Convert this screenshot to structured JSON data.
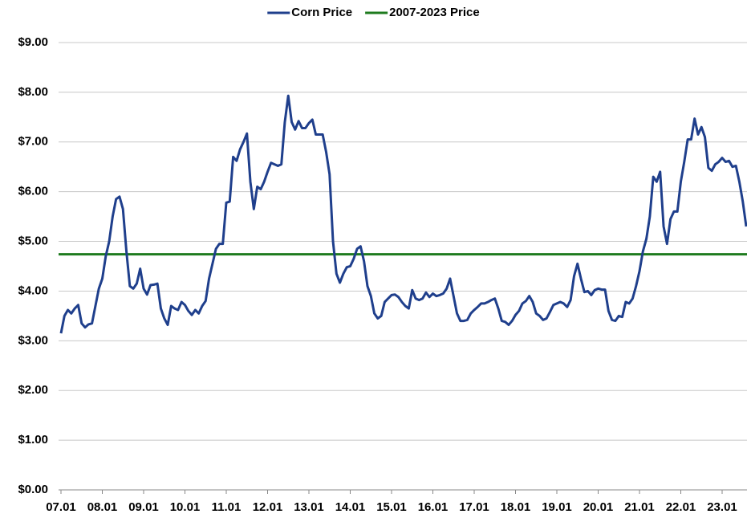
{
  "chart_data": {
    "type": "line",
    "categories": [
      "07.01",
      null,
      null,
      null,
      null,
      null,
      null,
      null,
      null,
      null,
      null,
      null,
      "08.01",
      null,
      null,
      null,
      null,
      null,
      null,
      null,
      null,
      null,
      null,
      null,
      "09.01",
      null,
      null,
      null,
      null,
      null,
      null,
      null,
      null,
      null,
      null,
      null,
      "10.01",
      null,
      null,
      null,
      null,
      null,
      null,
      null,
      null,
      null,
      null,
      null,
      "11.01",
      null,
      null,
      null,
      null,
      null,
      null,
      null,
      null,
      null,
      null,
      null,
      "12.01",
      null,
      null,
      null,
      null,
      null,
      null,
      null,
      null,
      null,
      null,
      null,
      "13.01",
      null,
      null,
      null,
      null,
      null,
      null,
      null,
      null,
      null,
      null,
      null,
      "14.01",
      null,
      null,
      null,
      null,
      null,
      null,
      null,
      null,
      null,
      null,
      null,
      "15.01",
      null,
      null,
      null,
      null,
      null,
      null,
      null,
      null,
      null,
      null,
      null,
      "16.01",
      null,
      null,
      null,
      null,
      null,
      null,
      null,
      null,
      null,
      null,
      null,
      "17.01",
      null,
      null,
      null,
      null,
      null,
      null,
      null,
      null,
      null,
      null,
      null,
      "18.01",
      null,
      null,
      null,
      null,
      null,
      null,
      null,
      null,
      null,
      null,
      null,
      "19.01",
      null,
      null,
      null,
      null,
      null,
      null,
      null,
      null,
      null,
      null,
      null,
      "20.01",
      null,
      null,
      null,
      null,
      null,
      null,
      null,
      null,
      null,
      null,
      null,
      "21.01",
      null,
      null,
      null,
      null,
      null,
      null,
      null,
      null,
      null,
      null,
      null,
      "22.01",
      null,
      null,
      null,
      null,
      null,
      null,
      null,
      null,
      null,
      null,
      null,
      "23.01",
      null,
      null,
      null,
      null,
      null,
      null,
      null
    ],
    "series": [
      {
        "name": "Corn Price",
        "color": "#1f3f8c",
        "values": [
          3.15,
          3.5,
          3.62,
          3.55,
          3.65,
          3.72,
          3.35,
          3.27,
          3.33,
          3.35,
          3.7,
          4.05,
          4.25,
          4.7,
          5.0,
          5.5,
          5.85,
          5.9,
          5.65,
          4.8,
          4.1,
          4.05,
          4.15,
          4.45,
          4.05,
          3.93,
          4.12,
          4.13,
          4.15,
          3.65,
          3.45,
          3.32,
          3.7,
          3.65,
          3.62,
          3.78,
          3.72,
          3.6,
          3.52,
          3.62,
          3.55,
          3.7,
          3.8,
          4.25,
          4.55,
          4.85,
          4.95,
          4.95,
          5.78,
          5.8,
          6.7,
          6.62,
          6.85,
          7.0,
          7.17,
          6.2,
          5.65,
          6.1,
          6.05,
          6.2,
          6.4,
          6.58,
          6.55,
          6.52,
          6.55,
          7.4,
          7.93,
          7.4,
          7.25,
          7.42,
          7.28,
          7.28,
          7.38,
          7.45,
          7.15,
          7.15,
          7.15,
          6.8,
          6.35,
          5.0,
          4.35,
          4.17,
          4.35,
          4.48,
          4.5,
          4.65,
          4.85,
          4.9,
          4.6,
          4.1,
          3.9,
          3.55,
          3.45,
          3.5,
          3.78,
          3.85,
          3.92,
          3.93,
          3.88,
          3.78,
          3.7,
          3.65,
          4.02,
          3.85,
          3.82,
          3.85,
          3.97,
          3.88,
          3.95,
          3.9,
          3.92,
          3.95,
          4.05,
          4.25,
          3.9,
          3.55,
          3.4,
          3.4,
          3.42,
          3.55,
          3.62,
          3.68,
          3.75,
          3.75,
          3.78,
          3.82,
          3.85,
          3.65,
          3.4,
          3.38,
          3.32,
          3.4,
          3.52,
          3.6,
          3.75,
          3.8,
          3.9,
          3.78,
          3.55,
          3.5,
          3.42,
          3.45,
          3.58,
          3.72,
          3.75,
          3.78,
          3.75,
          3.68,
          3.82,
          4.3,
          4.55,
          4.25,
          3.98,
          4.0,
          3.92,
          4.02,
          4.05,
          4.03,
          4.03,
          3.6,
          3.42,
          3.4,
          3.5,
          3.48,
          3.78,
          3.75,
          3.85,
          4.1,
          4.4,
          4.8,
          5.05,
          5.5,
          6.3,
          6.2,
          6.4,
          5.3,
          4.95,
          5.45,
          5.6,
          5.6,
          6.2,
          6.6,
          7.05,
          7.05,
          7.47,
          7.15,
          7.3,
          7.1,
          6.48,
          6.42,
          6.55,
          6.6,
          6.68,
          6.6,
          6.62,
          6.5,
          6.52,
          6.2,
          5.8,
          5.3
        ]
      }
    ],
    "reference_lines": [
      {
        "name": "2007-2023 Price",
        "color": "#1e7b1e",
        "value": 4.74
      }
    ],
    "ylim": [
      0,
      9
    ],
    "yticks": [
      {
        "value": 0,
        "label": "$0.00"
      },
      {
        "value": 1,
        "label": "$1.00"
      },
      {
        "value": 2,
        "label": "$2.00"
      },
      {
        "value": 3,
        "label": "$3.00"
      },
      {
        "value": 4,
        "label": "$4.00"
      },
      {
        "value": 5,
        "label": "$5.00"
      },
      {
        "value": 6,
        "label": "$6.00"
      },
      {
        "value": 7,
        "label": "$7.00"
      },
      {
        "value": 8,
        "label": "$8.00"
      },
      {
        "value": 9,
        "label": "$9.00"
      }
    ],
    "grid": true,
    "legend": "top"
  }
}
